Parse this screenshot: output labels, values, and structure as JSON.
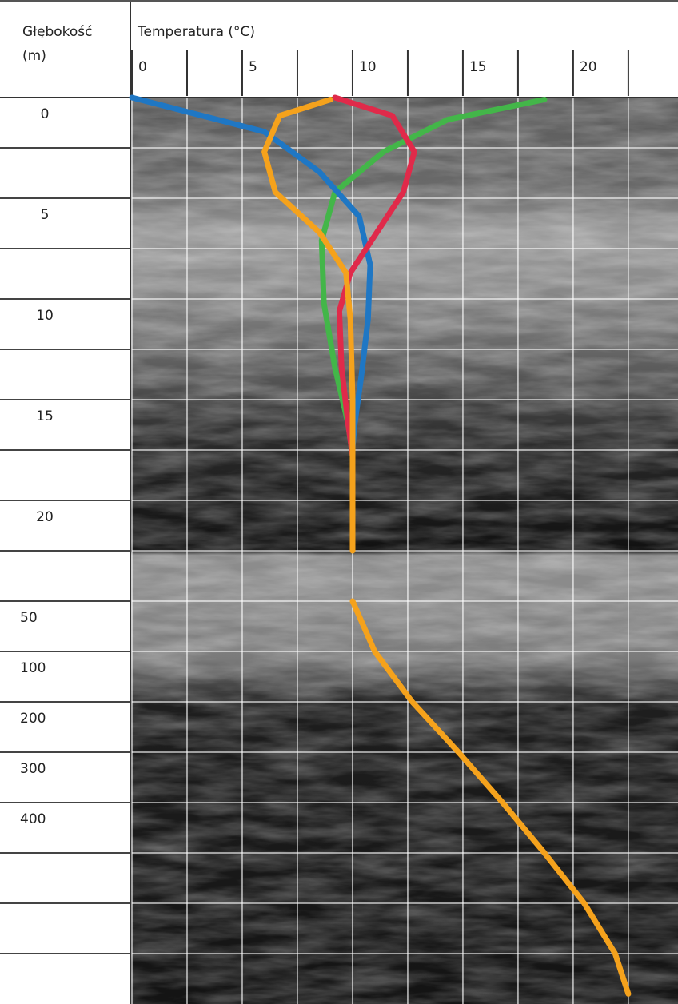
{
  "chart_data": {
    "type": "line",
    "title": "Temperatura (°C)",
    "ylabel_lines": [
      "Głębokość",
      "(m)"
    ],
    "xlim": [
      0,
      24.75
    ],
    "xticks": [
      0,
      5,
      10,
      15,
      20
    ],
    "minor_xticks": [
      2.5,
      7.5,
      12.5,
      17.5,
      22.5
    ],
    "categories": [
      "0",
      null,
      "5",
      null,
      "10",
      null,
      "15",
      null,
      "20",
      null,
      "50",
      "100",
      "200",
      "300",
      "400",
      null,
      null,
      null
    ],
    "grid": true,
    "series": [
      {
        "color": "#43b649",
        "x": [
          18.7,
          14.3,
          11.4,
          9.2,
          8.6,
          8.7,
          9.2,
          9.8,
          10
        ],
        "y": [
          0.1,
          1.1,
          2.7,
          4.7,
          7.1,
          10.2,
          13.4,
          16.2,
          17.8
        ]
      },
      {
        "color": "#1f77c4",
        "x": [
          0,
          6,
          8.5,
          10.3,
          10.8,
          10.7,
          10.4,
          10.1,
          10
        ],
        "y": [
          0,
          1.7,
          3.7,
          5.9,
          8.3,
          11,
          13.8,
          16.2,
          17.4
        ]
      },
      {
        "color": "#e02a4a",
        "x": [
          9.2,
          11.8,
          12.8,
          12.3,
          11.1,
          9.9,
          9.4,
          9.5,
          9.8,
          10
        ],
        "y": [
          0,
          0.9,
          2.7,
          4.7,
          6.7,
          8.7,
          10.6,
          13.4,
          16.2,
          17.8
        ]
      },
      {
        "color": "#f5a21c",
        "x": [
          9,
          6.7,
          6,
          6.5,
          8.5,
          9.7,
          9.9,
          10,
          10,
          null,
          10,
          11,
          12.7,
          14.8,
          16.8,
          18.7,
          20.5,
          21.9,
          22.5
        ],
        "y": [
          0.1,
          0.9,
          2.7,
          4.7,
          6.7,
          8.7,
          11,
          15,
          22.5,
          null,
          50,
          100,
          200,
          300,
          400,
          500,
          600,
          700,
          780
        ]
      }
    ]
  }
}
